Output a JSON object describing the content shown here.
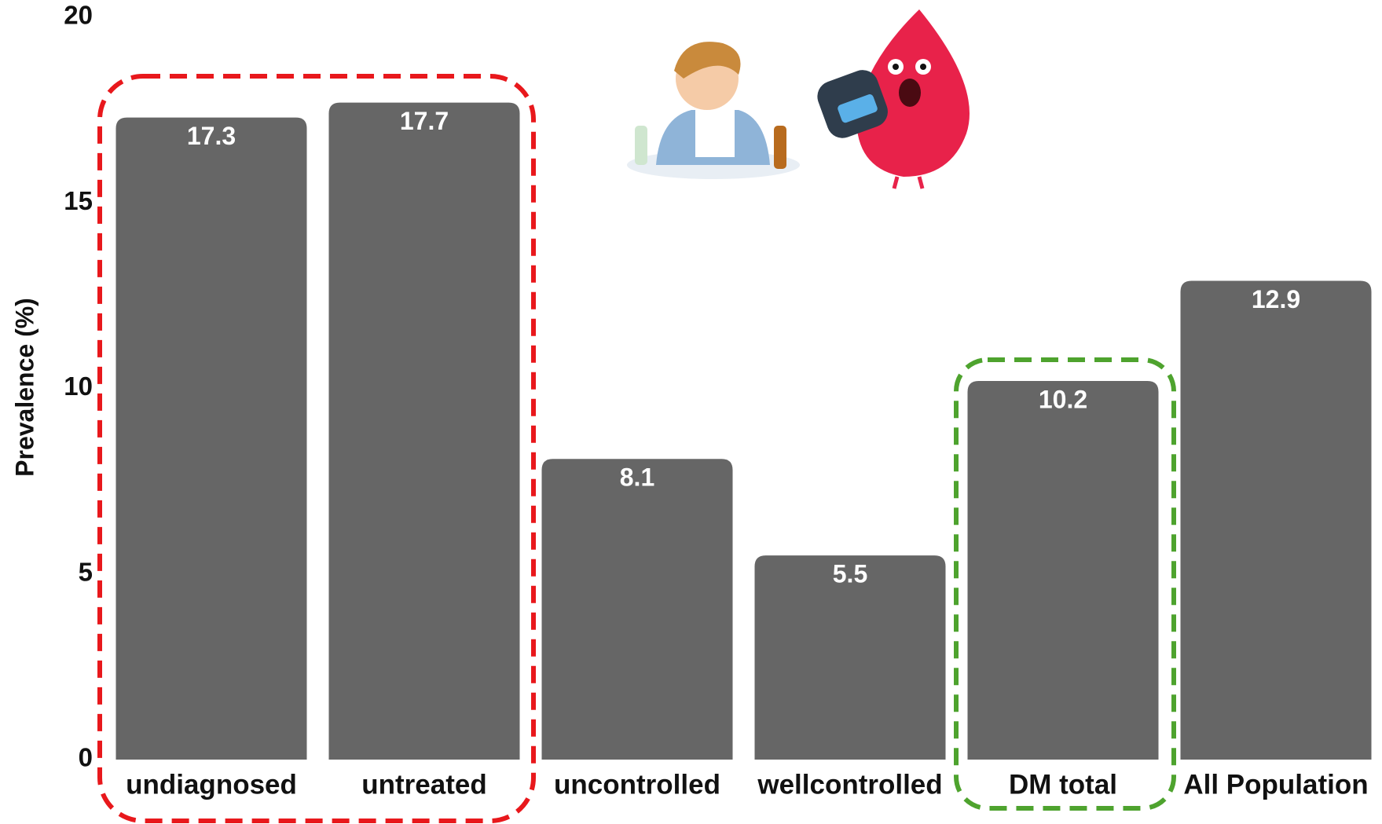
{
  "chart_data": {
    "type": "bar",
    "y_label": "Prevalence (%)",
    "categories": [
      "undiagnosed",
      "untreated",
      "uncontrolled",
      "wellcontrolled",
      "DM total",
      "All Population"
    ],
    "values": [
      17.3,
      17.7,
      8.1,
      5.5,
      10.2,
      12.9
    ],
    "color": "#666666",
    "ylim": [
      0,
      20
    ],
    "yticks": [
      0,
      5,
      10,
      15,
      20
    ],
    "grid": false
  }
}
